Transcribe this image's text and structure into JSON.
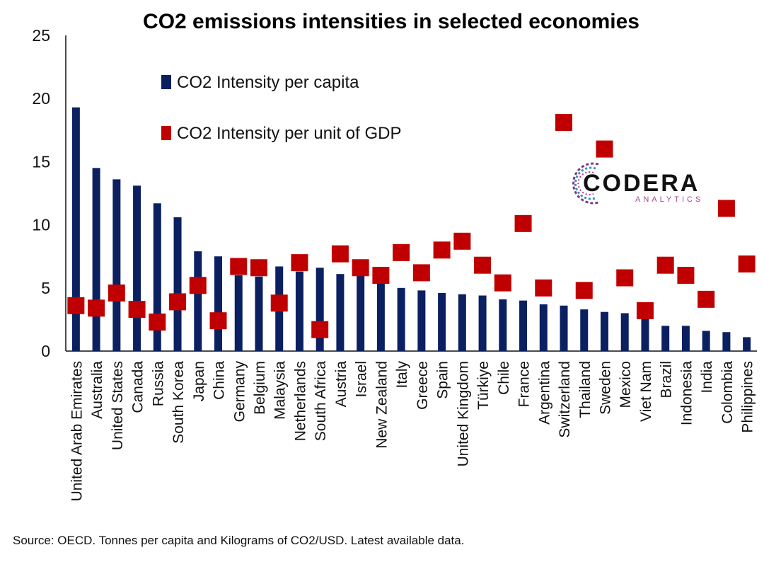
{
  "chart_data": {
    "type": "bar",
    "title": "CO2 emissions intensities in selected economies",
    "ylim": [
      0,
      25
    ],
    "yticks": [
      0,
      5,
      10,
      15,
      20,
      25
    ],
    "grid": false,
    "legend_position": "top-left",
    "categories": [
      "United Arab Emirates",
      "Australia",
      "United States",
      "Canada",
      "Russia",
      "South Korea",
      "Japan",
      "China",
      "Germany",
      "Belgium",
      "Malaysia",
      "Netherlands",
      "South Africa",
      "Austria",
      "Israel",
      "New Zealand",
      "Italy",
      "Greece",
      "Spain",
      "United Kingdom",
      "Türkiye",
      "Chile",
      "France",
      "Argentina",
      "Switzerland",
      "Thailand",
      "Sweden",
      "Mexico",
      "Viet Nam",
      "Brazil",
      "Indonesia",
      "India",
      "Colombia",
      "Philippines"
    ],
    "series": [
      {
        "name": "CO2 Intensity per capita",
        "kind": "bar",
        "color": "#0b2060",
        "values": [
          19.3,
          14.5,
          13.6,
          13.1,
          11.7,
          10.6,
          7.9,
          7.5,
          6.0,
          5.9,
          6.7,
          6.3,
          6.6,
          6.1,
          6.0,
          5.5,
          5.0,
          4.8,
          4.6,
          4.5,
          4.4,
          4.1,
          4.0,
          3.7,
          3.6,
          3.3,
          3.1,
          3.0,
          2.7,
          2.0,
          2.0,
          1.6,
          1.5,
          1.1
        ]
      },
      {
        "name": "CO2 Intensity per unit of GDP",
        "kind": "marker",
        "color": "#c00000",
        "values": [
          3.6,
          3.4,
          4.6,
          3.3,
          2.3,
          3.9,
          5.2,
          2.4,
          6.7,
          6.6,
          3.8,
          7.0,
          1.7,
          7.7,
          6.6,
          6.0,
          7.8,
          6.2,
          8.0,
          8.7,
          6.8,
          5.4,
          10.1,
          5.0,
          18.1,
          4.8,
          16.0,
          5.8,
          3.2,
          6.8,
          6.0,
          4.1,
          11.3,
          6.9
        ]
      }
    ],
    "source": "Source: OECD. Tonnes per capita and Kilograms of CO2/USD. Latest available data."
  },
  "logo": {
    "name": "CODERA",
    "sub": "ANALYTICS"
  }
}
